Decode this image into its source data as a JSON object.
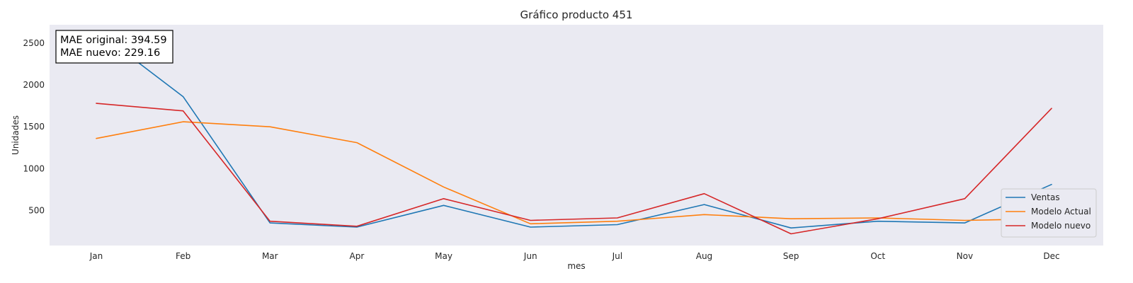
{
  "chart_data": {
    "type": "line",
    "title": "Gráfico producto 451",
    "xlabel": "mes",
    "ylabel": "Unidades",
    "categories": [
      "Jan",
      "Feb",
      "Mar",
      "Apr",
      "May",
      "Jun",
      "Jul",
      "Aug",
      "Sep",
      "Oct",
      "Nov",
      "Dec"
    ],
    "yticks": [
      500,
      1000,
      1500,
      2000,
      2500
    ],
    "ylim": [
      80,
      2720
    ],
    "grid": false,
    "legend_position": "lower-right",
    "background_color": "#eaeaf2",
    "series": [
      {
        "name": "Ventas",
        "color": "#1f77b4",
        "values": [
          2650,
          1860,
          350,
          300,
          560,
          300,
          330,
          570,
          290,
          370,
          350,
          810
        ]
      },
      {
        "name": "Modelo Actual",
        "color": "#ff7f0e",
        "values": [
          1360,
          1560,
          1500,
          1310,
          780,
          340,
          370,
          450,
          400,
          410,
          380,
          400
        ]
      },
      {
        "name": "Modelo nuevo",
        "color": "#d62728",
        "values": [
          1780,
          1690,
          370,
          310,
          640,
          380,
          410,
          700,
          220,
          400,
          640,
          1720
        ]
      }
    ],
    "annotation": {
      "lines": [
        "MAE original: 394.59",
        "MAE nuevo: 229.16"
      ]
    }
  }
}
